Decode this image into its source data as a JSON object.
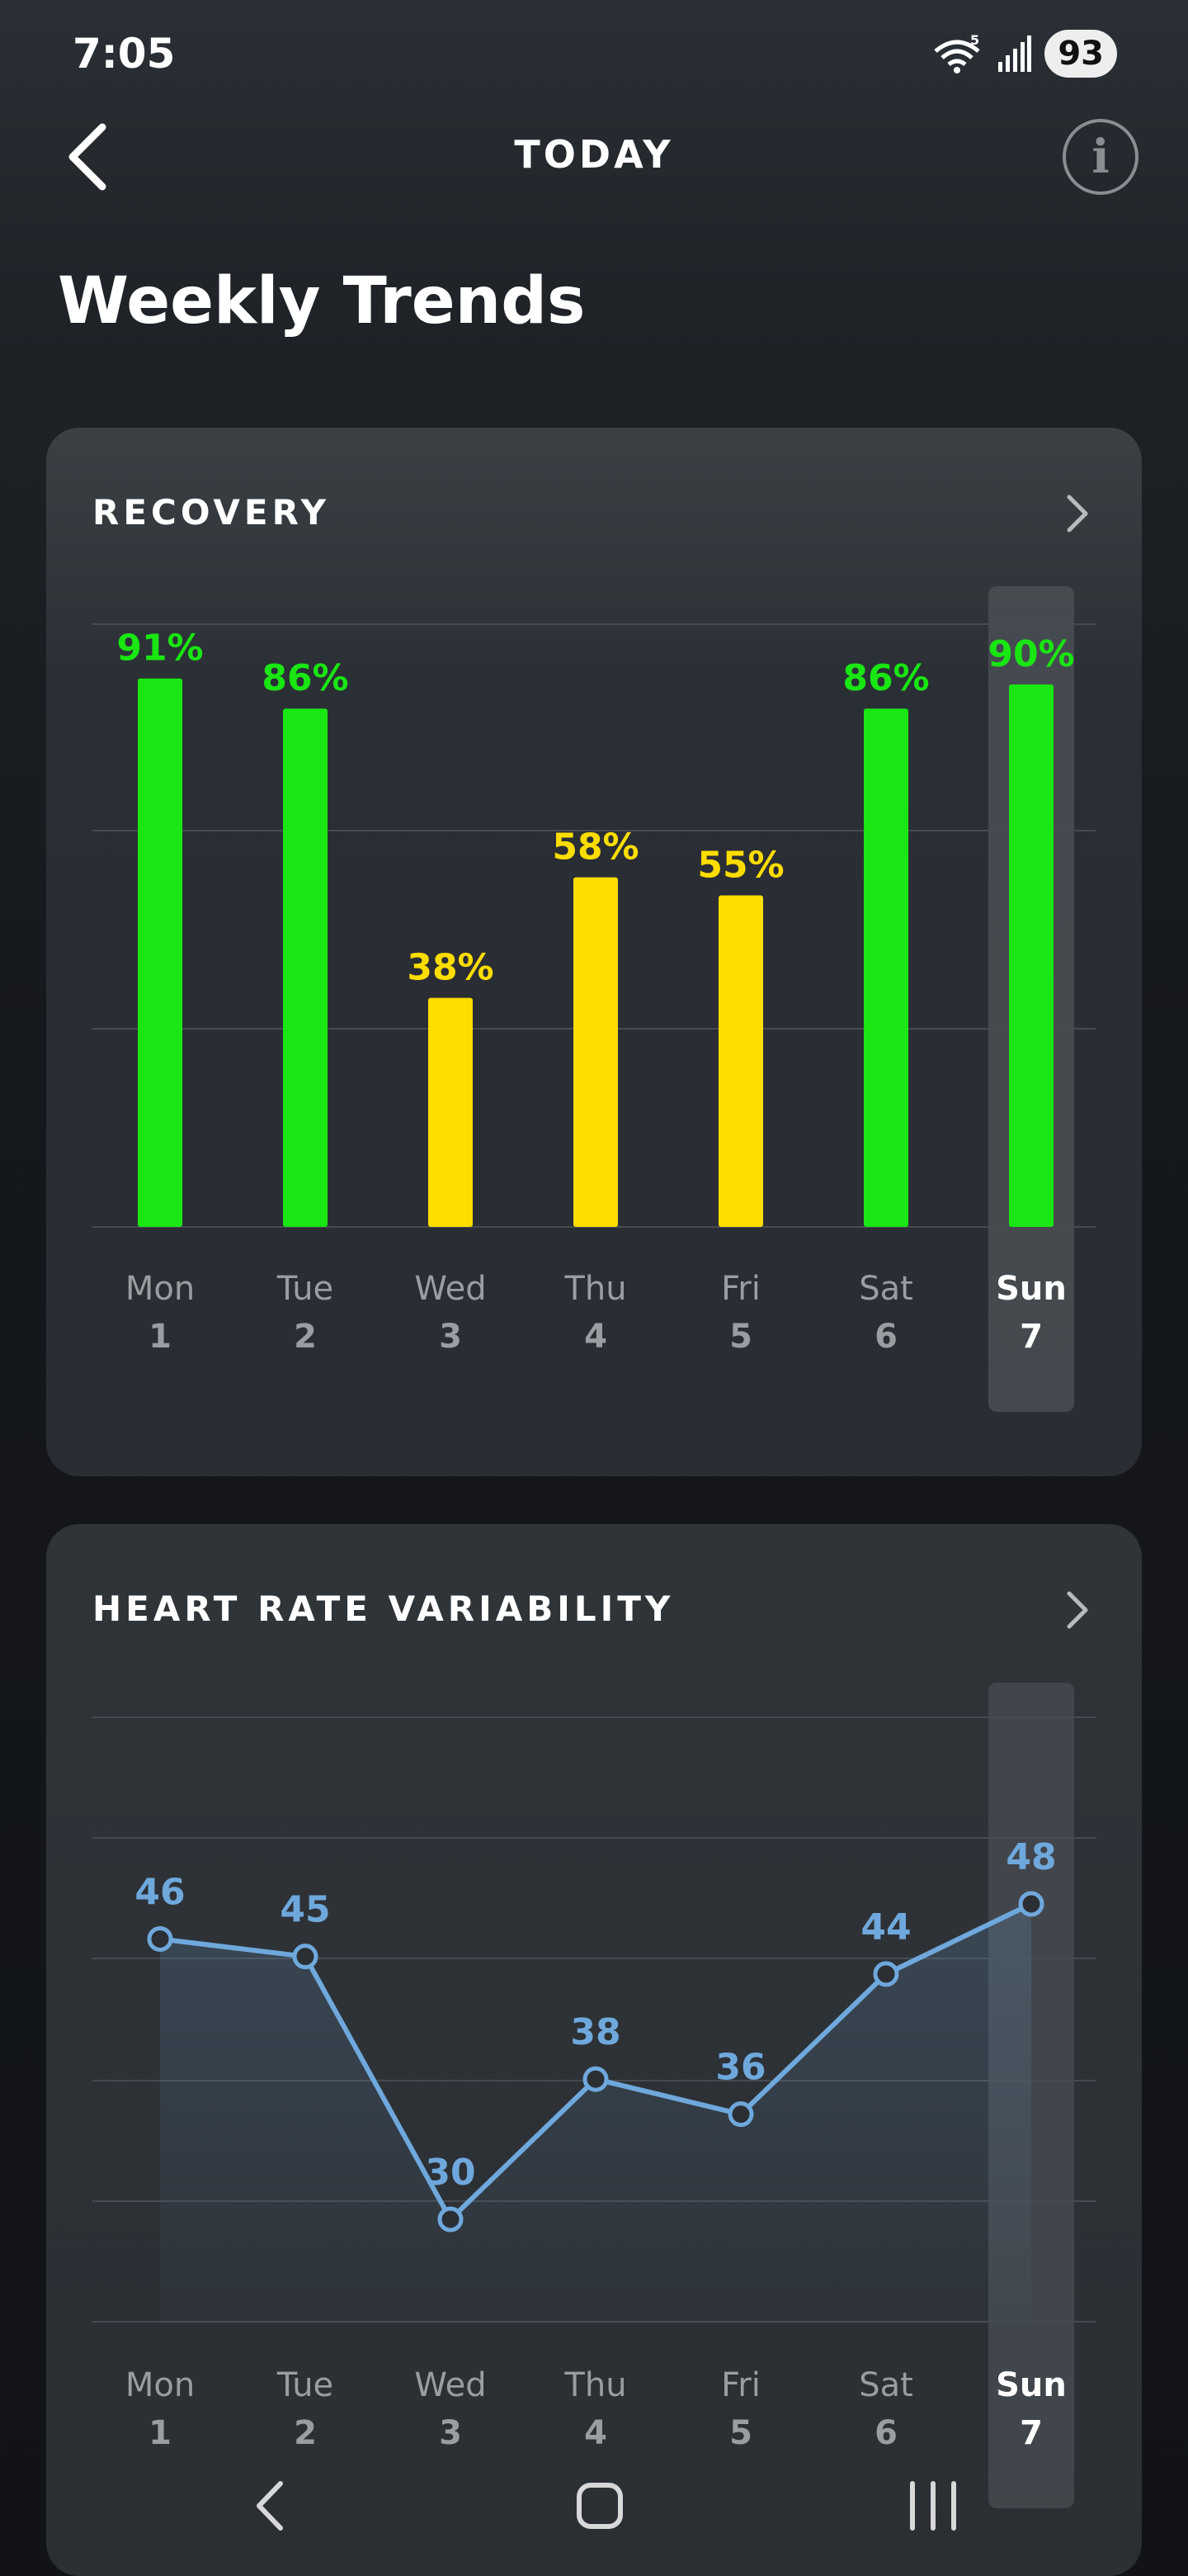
{
  "status_bar": {
    "time": "7:05",
    "battery": "93",
    "wifi_badge": "5"
  },
  "header": {
    "title": "TODAY",
    "back_icon": "chevron-left-icon",
    "info_icon": "info-icon",
    "info_glyph": "i"
  },
  "page_title": "Weekly Trends",
  "colors": {
    "green": "#19e612",
    "yellow": "#ffdd00",
    "blue": "#6fa8dc",
    "grid": "#454b51",
    "highlight": "#4a4f55",
    "day_dim": "#9a9da1"
  },
  "days": [
    {
      "name": "Mon",
      "num": "1"
    },
    {
      "name": "Tue",
      "num": "2"
    },
    {
      "name": "Wed",
      "num": "3"
    },
    {
      "name": "Thu",
      "num": "4"
    },
    {
      "name": "Fri",
      "num": "5"
    },
    {
      "name": "Sat",
      "num": "6"
    },
    {
      "name": "Sun",
      "num": "7"
    }
  ],
  "selected_day_index": 6,
  "recovery": {
    "title": "RECOVERY"
  },
  "hrv": {
    "title": "HEART RATE VARIABILITY"
  },
  "chart_data": [
    {
      "type": "bar",
      "title": "RECOVERY",
      "categories": [
        "Mon 1",
        "Tue 2",
        "Wed 3",
        "Thu 4",
        "Fri 5",
        "Sat 6",
        "Sun 7"
      ],
      "values": [
        91,
        86,
        38,
        58,
        55,
        86,
        90
      ],
      "labels": [
        "91%",
        "86%",
        "38%",
        "58%",
        "55%",
        "86%",
        "90%"
      ],
      "bar_colors": [
        "green",
        "green",
        "yellow",
        "yellow",
        "yellow",
        "green",
        "green"
      ],
      "ylim": [
        0,
        100
      ],
      "grid": true
    },
    {
      "type": "area",
      "title": "HEART RATE VARIABILITY",
      "categories": [
        "Mon 1",
        "Tue 2",
        "Wed 3",
        "Thu 4",
        "Fri 5",
        "Sat 6",
        "Sun 7"
      ],
      "values": [
        46,
        45,
        30,
        38,
        36,
        44,
        48
      ],
      "labels": [
        "46",
        "45",
        "30",
        "38",
        "36",
        "44",
        "48"
      ],
      "grid": true
    }
  ],
  "nav": {
    "back_icon": "nav-back-icon",
    "home_icon": "nav-home-icon",
    "recents_icon": "nav-recents-icon"
  }
}
